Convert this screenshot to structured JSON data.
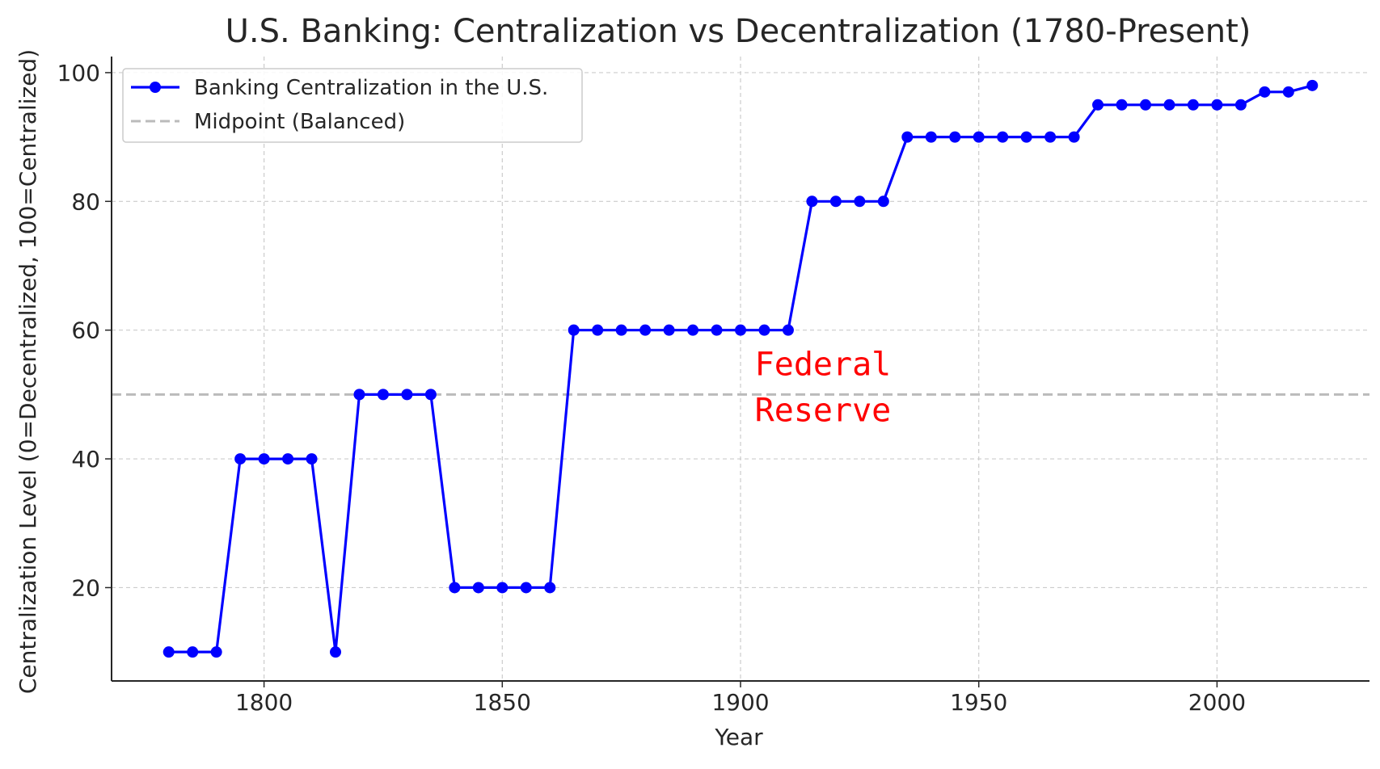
{
  "chart_data": {
    "type": "line",
    "title": "U.S. Banking: Centralization vs Decentralization (1780-Present)",
    "xlabel": "Year",
    "ylabel": "Centralization Level (0=Decentralized, 100=Centralized)",
    "xlim": [
      1768,
      2032
    ],
    "ylim": [
      5.5,
      102.5
    ],
    "xticks": [
      1800,
      1850,
      1900,
      1950,
      2000
    ],
    "yticks": [
      20,
      40,
      60,
      80,
      100
    ],
    "grid": true,
    "legend_position": "upper-left",
    "series": [
      {
        "name": "Banking Centralization in the U.S.",
        "color": "#0000ff",
        "marker": "circle",
        "x": [
          1780,
          1785,
          1790,
          1795,
          1800,
          1805,
          1810,
          1815,
          1820,
          1825,
          1830,
          1835,
          1840,
          1845,
          1850,
          1855,
          1860,
          1865,
          1870,
          1875,
          1880,
          1885,
          1890,
          1895,
          1900,
          1905,
          1910,
          1915,
          1920,
          1925,
          1930,
          1935,
          1940,
          1945,
          1950,
          1955,
          1960,
          1965,
          1970,
          1975,
          1980,
          1985,
          1990,
          1995,
          2000,
          2005,
          2010,
          2015,
          2020
        ],
        "y": [
          10,
          10,
          10,
          40,
          40,
          40,
          40,
          10,
          50,
          50,
          50,
          50,
          20,
          20,
          20,
          20,
          20,
          60,
          60,
          60,
          60,
          60,
          60,
          60,
          60,
          60,
          60,
          80,
          80,
          80,
          80,
          90,
          90,
          90,
          90,
          90,
          90,
          90,
          90,
          95,
          95,
          95,
          95,
          95,
          95,
          95,
          97,
          97,
          98
        ]
      }
    ],
    "reference_lines": [
      {
        "name": "Midpoint (Balanced)",
        "y": 50,
        "color": "#bbbbbb",
        "style": "dashed"
      }
    ],
    "annotations": [
      {
        "text_lines": [
          "Federal",
          "Reserve"
        ],
        "x": 1903,
        "y": 53,
        "color": "#ff0000"
      }
    ]
  }
}
